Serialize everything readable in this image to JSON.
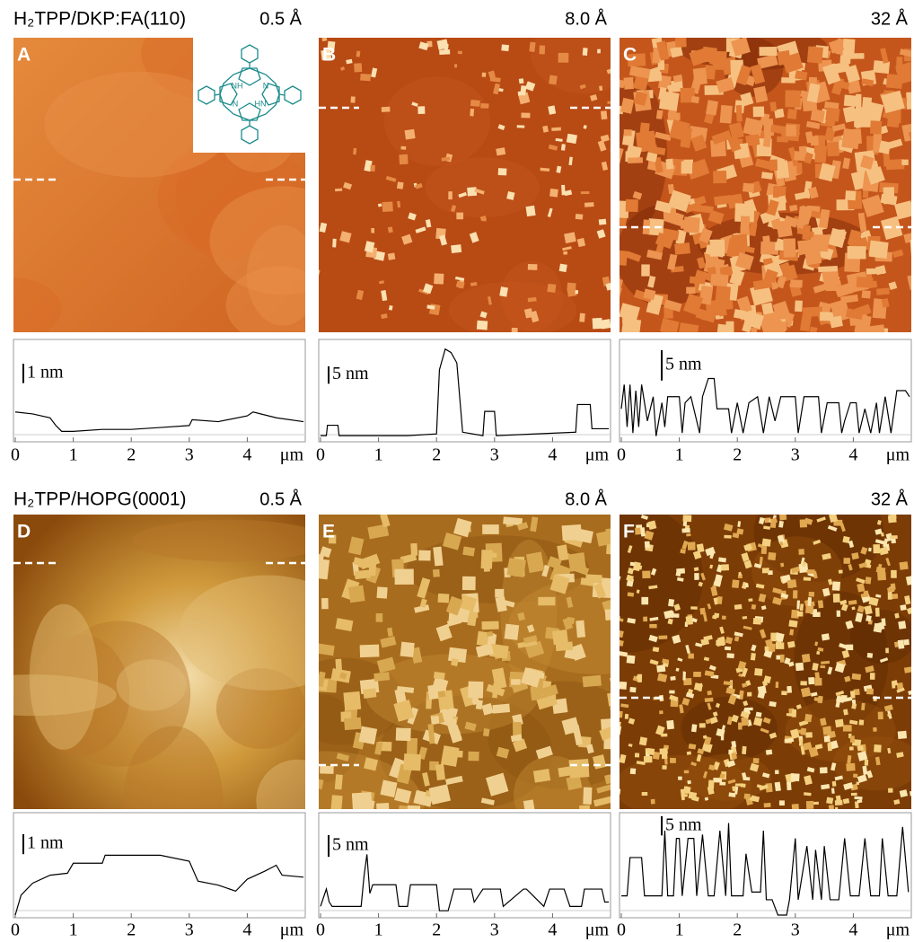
{
  "inset": {
    "atoms": [
      "NH",
      "N",
      "HN",
      "N"
    ]
  },
  "rows": [
    {
      "title": "H₂TPP/DKP:FA(110)",
      "panels": [
        {
          "label": "A",
          "coverage": "0.5 Å",
          "scale_bar": {
            "label": "1 nm",
            "value": 1
          },
          "profile": {
            "xlim": [
              0,
              5
            ],
            "ylim": [
              0,
              5
            ],
            "xticks": [
              0,
              1,
              2,
              3,
              4
            ],
            "unit": "μm",
            "x": [
              0,
              0.3,
              0.6,
              0.7,
              0.8,
              1,
              1.5,
              2,
              2.5,
              3,
              3.05,
              3.5,
              4,
              4.1,
              4.5,
              4.97
            ],
            "y": [
              1.4,
              1.3,
              1.1,
              0.7,
              0.4,
              0.4,
              0.5,
              0.5,
              0.6,
              0.7,
              1.0,
              0.9,
              1.2,
              1.4,
              1.1,
              0.9
            ]
          }
        },
        {
          "label": "B",
          "coverage": "8.0 Å",
          "scale_bar": {
            "label": "5 nm",
            "value": 5
          },
          "profile": {
            "xlim": [
              0,
              5
            ],
            "ylim": [
              0,
              28
            ],
            "xticks": [
              0,
              1,
              2,
              3,
              4
            ],
            "unit": "μm",
            "x": [
              0,
              0.1,
              0.12,
              0.3,
              0.32,
              1.5,
              2.0,
              2.05,
              2.15,
              2.25,
              2.35,
              2.45,
              2.8,
              2.83,
              3.0,
              3.03,
              4.4,
              4.43,
              4.65,
              4.68,
              4.97
            ],
            "y": [
              1,
              1,
              4,
              4,
              1,
              1,
              1.5,
              20,
              26,
              25,
              22,
              2,
              1,
              8,
              8,
              1,
              2,
              10,
              10,
              3,
              3
            ]
          }
        },
        {
          "label": "C",
          "coverage": "32 Å",
          "scale_bar": {
            "label": "5 nm",
            "value": 5
          },
          "profile": {
            "xlim": [
              0,
              5
            ],
            "ylim": [
              0,
              16
            ],
            "xticks": [
              0,
              1,
              2,
              3,
              4
            ],
            "unit": "μm",
            "x": [
              0,
              0.05,
              0.1,
              0.15,
              0.2,
              0.25,
              0.3,
              0.35,
              0.45,
              0.55,
              0.6,
              0.7,
              0.75,
              0.8,
              1.0,
              1.05,
              1.1,
              1.2,
              1.35,
              1.4,
              1.5,
              1.6,
              1.65,
              1.85,
              1.9,
              2.0,
              2.1,
              2.2,
              2.35,
              2.45,
              2.55,
              2.65,
              2.75,
              3.0,
              3.05,
              3.15,
              3.4,
              3.45,
              3.55,
              3.75,
              3.8,
              3.85,
              3.95,
              4.05,
              4.1,
              4.2,
              4.3,
              4.4,
              4.45,
              4.55,
              4.65,
              4.75,
              4.9,
              4.97
            ],
            "y": [
              5,
              9,
              2,
              9,
              1,
              8,
              2,
              9,
              3,
              7,
              0.5,
              6,
              2,
              7,
              7,
              1,
              6,
              7,
              1,
              7,
              10,
              10,
              5,
              5,
              1,
              6,
              1,
              6,
              7,
              1,
              7,
              3,
              7,
              7,
              1,
              7,
              7,
              1,
              6,
              6,
              1,
              3,
              6,
              6,
              1,
              5,
              1,
              6,
              1,
              7,
              1,
              8,
              8,
              7
            ]
          }
        }
      ]
    },
    {
      "title": "H₂TPP/HOPG(0001)",
      "panels": [
        {
          "label": "D",
          "coverage": "0.5 Å",
          "scale_bar": {
            "label": "1 nm",
            "value": 1
          },
          "profile": {
            "xlim": [
              0,
              5
            ],
            "ylim": [
              0,
              5
            ],
            "xticks": [
              0,
              1,
              2,
              3,
              4
            ],
            "unit": "μm",
            "x": [
              0,
              0.1,
              0.3,
              0.6,
              0.9,
              1.0,
              1.5,
              1.55,
              2,
              2.5,
              3,
              3.15,
              3.5,
              3.8,
              4,
              4.3,
              4.5,
              4.6,
              4.97
            ],
            "y": [
              0,
              1,
              1.6,
              2,
              2.1,
              2.6,
              2.6,
              3.0,
              3.0,
              3.0,
              2.7,
              1.7,
              1.5,
              1.2,
              1.8,
              2.2,
              2.5,
              2.0,
              1.9
            ]
          }
        },
        {
          "label": "E",
          "coverage": "8.0 Å",
          "scale_bar": {
            "label": "5 nm",
            "value": 5
          },
          "profile": {
            "xlim": [
              0,
              5
            ],
            "ylim": [
              0,
              23
            ],
            "xticks": [
              0,
              1,
              2,
              3,
              4
            ],
            "unit": "μm",
            "x": [
              0,
              0.1,
              0.15,
              0.2,
              0.7,
              0.75,
              0.8,
              0.85,
              0.9,
              1.3,
              1.35,
              1.5,
              1.55,
              2.0,
              2.05,
              2.2,
              2.3,
              2.6,
              2.65,
              2.8,
              3.1,
              3.15,
              3.5,
              3.55,
              3.85,
              3.95,
              4.2,
              4.3,
              4.5,
              4.55,
              4.85,
              4.9,
              4.97
            ],
            "y": [
              2,
              6,
              3,
              2,
              2,
              9,
              14,
              5,
              7,
              7,
              2,
              2,
              7,
              7,
              1,
              1,
              6,
              6,
              3,
              6,
              6,
              2,
              6,
              6,
              2,
              6,
              6,
              2,
              2,
              6,
              6,
              3,
              3
            ]
          }
        },
        {
          "label": "F",
          "coverage": "32 Å",
          "scale_bar": {
            "label": "5 nm",
            "value": 5
          },
          "profile": {
            "xlim": [
              0,
              5
            ],
            "ylim": [
              0,
              26
            ],
            "xticks": [
              0,
              1,
              2,
              3,
              4
            ],
            "unit": "μm",
            "x": [
              0,
              0.1,
              0.15,
              0.35,
              0.4,
              0.7,
              0.75,
              0.8,
              0.9,
              0.95,
              1.0,
              1.05,
              1.15,
              1.25,
              1.3,
              1.4,
              1.5,
              1.6,
              1.7,
              1.8,
              1.85,
              1.9,
              2.1,
              2.15,
              2.25,
              2.4,
              2.45,
              2.5,
              2.6,
              2.7,
              2.85,
              2.9,
              3.0,
              3.05,
              3.2,
              3.3,
              3.35,
              3.45,
              3.5,
              3.6,
              3.75,
              3.85,
              3.95,
              4.1,
              4.2,
              4.3,
              4.45,
              4.5,
              4.6,
              4.75,
              4.85,
              4.95
            ],
            "y": [
              5,
              5,
              15,
              15,
              5,
              5,
              22,
              5,
              5,
              20,
              20,
              5,
              20,
              20,
              5,
              21,
              5,
              5,
              22,
              5,
              24,
              5,
              5,
              16,
              6,
              6,
              22,
              4,
              4,
              0,
              0,
              4,
              20,
              4,
              18,
              4,
              17,
              4,
              18,
              4,
              4,
              20,
              5,
              5,
              20,
              5,
              5,
              20,
              5,
              5,
              23,
              6
            ]
          }
        }
      ]
    }
  ]
}
